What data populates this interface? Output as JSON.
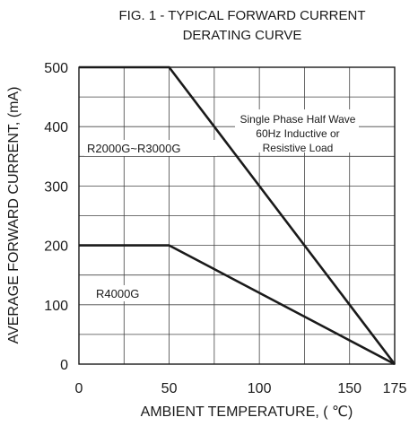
{
  "chart_data": {
    "type": "line",
    "title": "FIG. 1 - TYPICAL FORWARD CURRENT",
    "subtitle": "DERATING CURVE",
    "xlabel": "AMBIENT TEMPERATURE, ( ℃)",
    "ylabel": "AVERAGE FORWARD CURRENT, (mA)",
    "xlim": [
      0,
      175
    ],
    "ylim": [
      0,
      500
    ],
    "x_ticks": [
      0,
      50,
      100,
      150,
      175
    ],
    "x_tick_labels": [
      "0",
      "50",
      "100",
      "150",
      "175"
    ],
    "y_ticks": [
      0,
      100,
      200,
      300,
      400,
      500
    ],
    "y_tick_labels": [
      "0",
      "100",
      "200",
      "300",
      "400",
      "500"
    ],
    "x_grid": [
      0,
      25,
      50,
      75,
      100,
      125,
      150,
      175
    ],
    "y_grid": [
      0,
      50,
      100,
      150,
      200,
      250,
      300,
      350,
      400,
      450,
      500
    ],
    "grid": true,
    "series": [
      {
        "name": "R2000G~R3000G",
        "x": [
          0,
          50,
          175
        ],
        "y": [
          500,
          500,
          0
        ]
      },
      {
        "name": "R4000G",
        "x": [
          0,
          50,
          175
        ],
        "y": [
          200,
          200,
          0
        ]
      }
    ],
    "annotation": [
      "Single Phase Half Wave",
      "60Hz Inductive or",
      "Resistive Load"
    ]
  }
}
